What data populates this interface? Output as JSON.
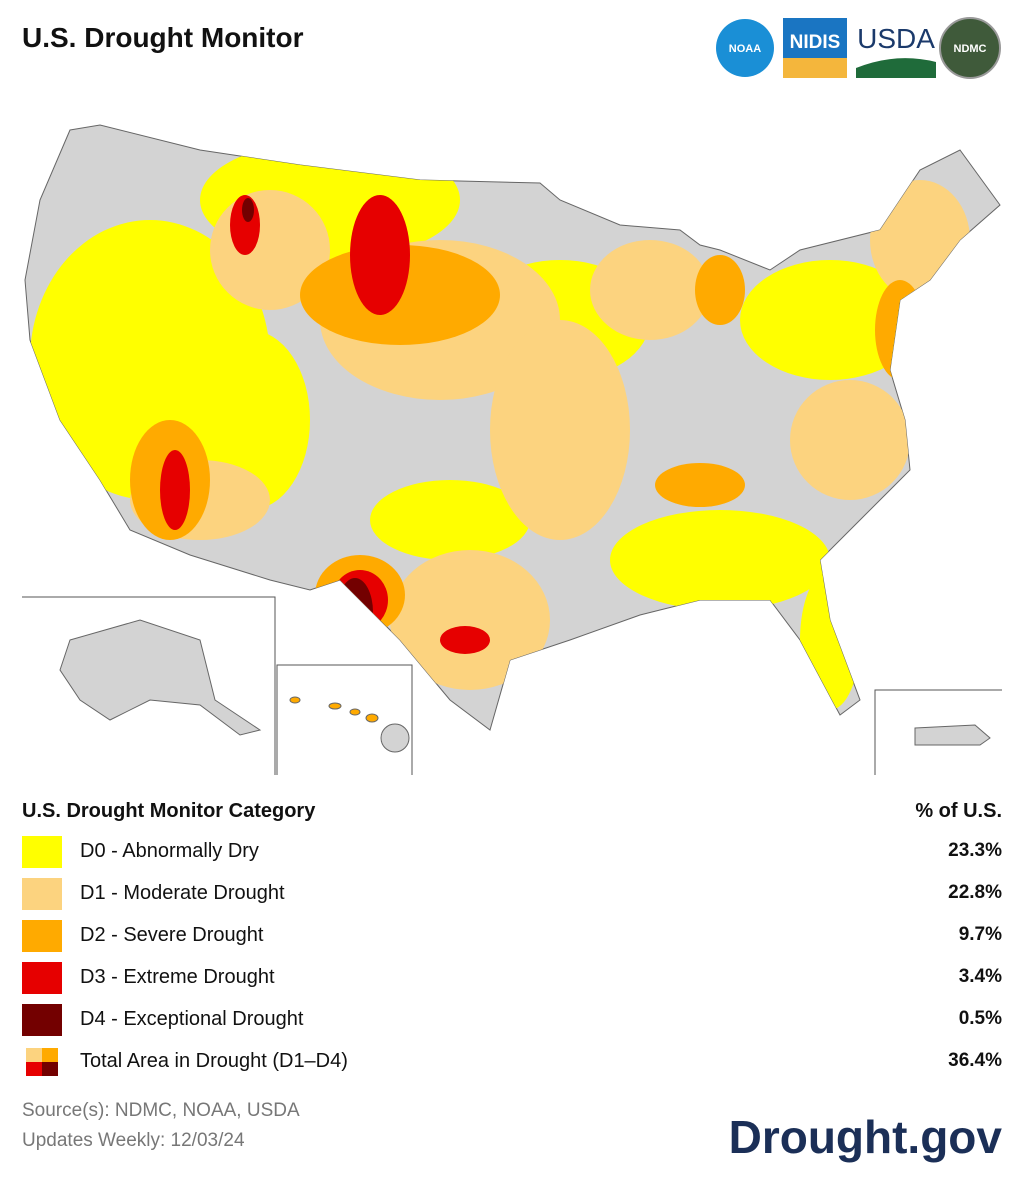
{
  "header": {
    "title": "U.S. Drought Monitor",
    "logos": [
      "NOAA",
      "NIDIS",
      "USDA",
      "NDMC"
    ]
  },
  "legend": {
    "title": "U.S. Drought Monitor Category",
    "value_header": "% of U.S.",
    "rows": [
      {
        "label": "D0 - Abnormally Dry",
        "value": "23.3%"
      },
      {
        "label": "D1 - Moderate Drought",
        "value": "22.8%"
      },
      {
        "label": "D2 - Severe Drought",
        "value": "9.7%"
      },
      {
        "label": "D3 - Extreme Drought",
        "value": "3.4%"
      },
      {
        "label": "D4 - Exceptional Drought",
        "value": "0.5%"
      },
      {
        "label": "Total Area in Drought (D1–D4)",
        "value": "36.4%"
      }
    ]
  },
  "footer": {
    "source": "Source(s): NDMC, NOAA, USDA",
    "updates": "Updates Weekly: 12/03/24",
    "site": "Drought.gov"
  }
}
